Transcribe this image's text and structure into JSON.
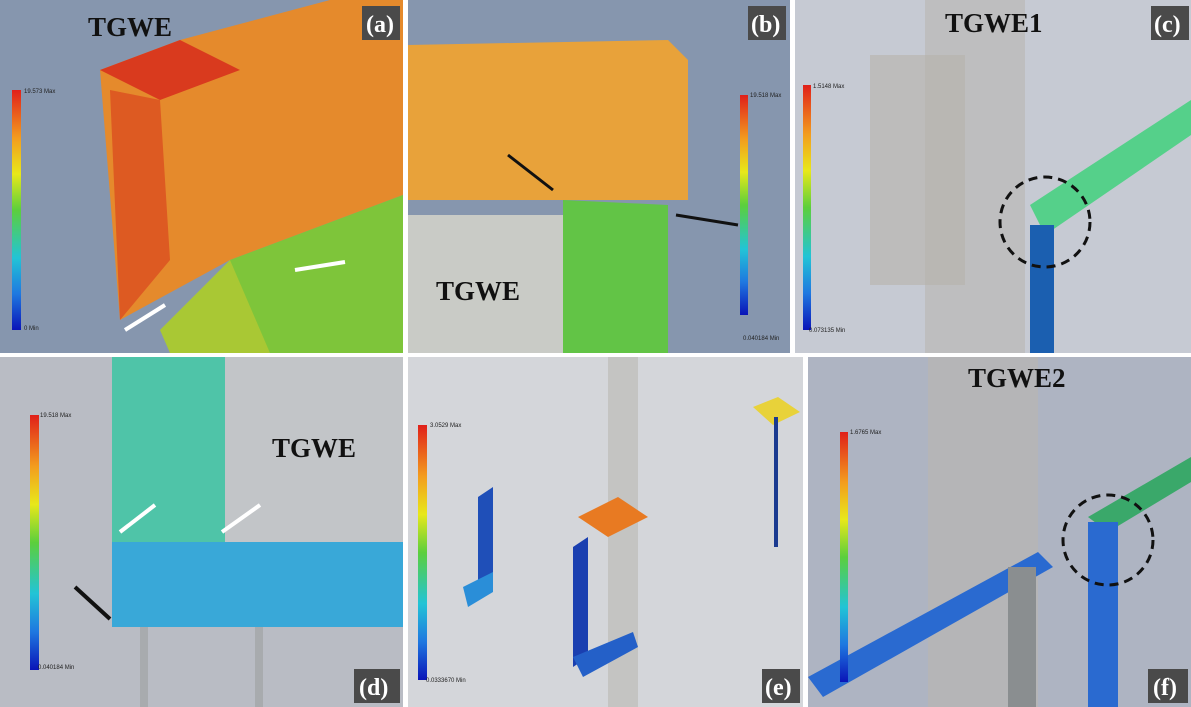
{
  "panels": [
    {
      "label": "(a)",
      "title": "TGWE",
      "legend_max": "19.573 Max",
      "legend_min": "0 Min"
    },
    {
      "label": "(b)",
      "title": "TGWE",
      "legend_max": "19.518 Max",
      "legend_min": "0.040184 Min"
    },
    {
      "label": "(c)",
      "title": "TGWE1",
      "legend_max": "1.5148 Max",
      "legend_min": "0.073135 Min"
    },
    {
      "label": "(d)",
      "title": "TGWE",
      "legend_max": "19.518 Max",
      "legend_min": "0.040184 Min"
    },
    {
      "label": "(e)",
      "legend_max": "3.0529 Max",
      "legend_min": "0.0333670 Min"
    },
    {
      "label": "(f)",
      "title": "TGWE2",
      "legend_max": "1.6765 Max"
    }
  ]
}
